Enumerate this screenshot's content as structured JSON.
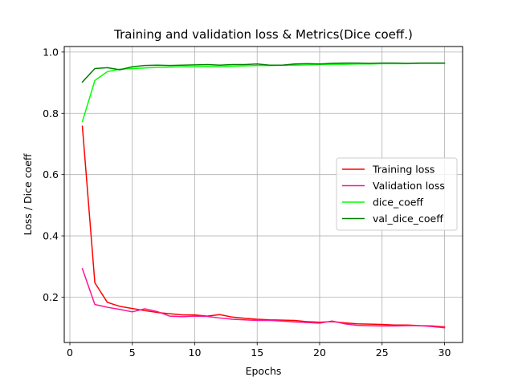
{
  "chart_data": {
    "type": "line",
    "title": "Training and validation loss & Metrics(Dice coeff.)",
    "xlabel": "Epochs",
    "ylabel": "Loss / Dice coeff",
    "xlim": [
      -0.45,
      31.45
    ],
    "ylim": [
      0.052,
      1.018
    ],
    "x_ticks": [
      0,
      5,
      10,
      15,
      20,
      25,
      30
    ],
    "y_ticks": [
      0.2,
      0.4,
      0.6,
      0.8,
      1.0
    ],
    "grid": true,
    "legend_position": "center-right",
    "x": [
      1,
      2,
      3,
      4,
      5,
      6,
      7,
      8,
      9,
      10,
      11,
      12,
      13,
      14,
      15,
      16,
      17,
      18,
      19,
      20,
      21,
      22,
      23,
      24,
      25,
      26,
      27,
      28,
      29,
      30
    ],
    "series": [
      {
        "name": "Training loss",
        "color": "#ff0000",
        "values": [
          0.758,
          0.247,
          0.183,
          0.17,
          0.163,
          0.156,
          0.15,
          0.146,
          0.142,
          0.142,
          0.138,
          0.143,
          0.135,
          0.131,
          0.128,
          0.126,
          0.125,
          0.124,
          0.12,
          0.118,
          0.12,
          0.116,
          0.113,
          0.112,
          0.111,
          0.109,
          0.109,
          0.107,
          0.106,
          0.103
        ]
      },
      {
        "name": "Validation loss",
        "color": "#ff1493",
        "values": [
          0.293,
          0.176,
          0.167,
          0.16,
          0.152,
          0.162,
          0.153,
          0.138,
          0.136,
          0.138,
          0.137,
          0.132,
          0.128,
          0.126,
          0.124,
          0.124,
          0.122,
          0.119,
          0.117,
          0.115,
          0.122,
          0.113,
          0.108,
          0.107,
          0.106,
          0.106,
          0.107,
          0.107,
          0.104,
          0.1
        ]
      },
      {
        "name": "dice_coeff",
        "color": "#00ff00",
        "values": [
          0.773,
          0.907,
          0.936,
          0.944,
          0.946,
          0.948,
          0.95,
          0.951,
          0.952,
          0.952,
          0.953,
          0.952,
          0.954,
          0.955,
          0.956,
          0.956,
          0.957,
          0.957,
          0.958,
          0.959,
          0.96,
          0.96,
          0.961,
          0.961,
          0.962,
          0.962,
          0.962,
          0.963,
          0.963,
          0.963
        ]
      },
      {
        "name": "val_dice_coeff",
        "color": "#008000",
        "values": [
          0.902,
          0.946,
          0.949,
          0.942,
          0.952,
          0.956,
          0.957,
          0.956,
          0.957,
          0.958,
          0.959,
          0.957,
          0.959,
          0.959,
          0.961,
          0.957,
          0.957,
          0.961,
          0.962,
          0.961,
          0.963,
          0.964,
          0.964,
          0.963,
          0.964,
          0.964,
          0.963,
          0.964,
          0.964,
          0.964
        ]
      }
    ]
  }
}
